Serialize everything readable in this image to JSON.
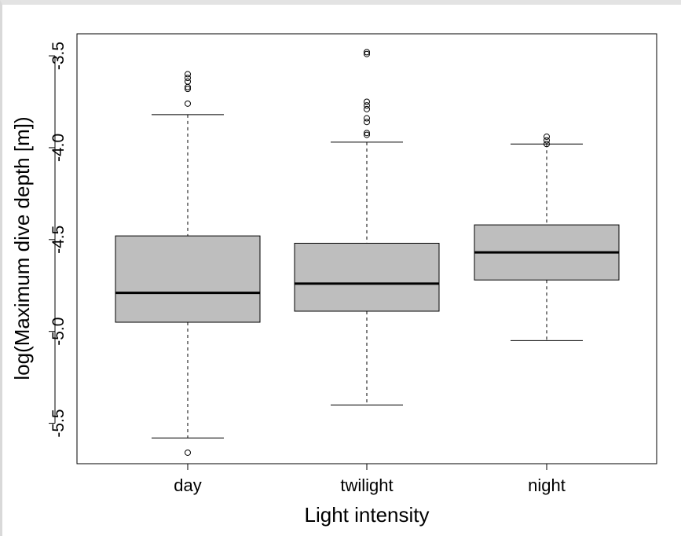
{
  "chart_data": {
    "type": "box",
    "title": "",
    "xlabel": "Light intensity",
    "ylabel": "log(Maximum dive depth [m])",
    "categories": [
      "day",
      "twilight",
      "night"
    ],
    "ylim": [
      -5.72,
      -3.38
    ],
    "yticks": [
      -3.5,
      -4.0,
      -4.5,
      -5.0,
      -5.5
    ],
    "ytick_labels": [
      "-3.5",
      "-4.0",
      "-4.5",
      "-5.0",
      "-5.5"
    ],
    "grid": false,
    "box_color": "#bebebe",
    "boxes": [
      {
        "category": "day",
        "whisker_low": -5.58,
        "q1": -4.95,
        "median": -4.79,
        "q3": -4.48,
        "whisker_high": -3.82,
        "outliers": [
          -5.66,
          -3.6,
          -3.62,
          -3.64,
          -3.67,
          -3.68,
          -3.76
        ]
      },
      {
        "category": "twilight",
        "whisker_low": -5.4,
        "q1": -4.89,
        "median": -4.74,
        "q3": -4.52,
        "whisker_high": -3.97,
        "outliers": [
          -3.48,
          -3.49,
          -3.75,
          -3.77,
          -3.79,
          -3.84,
          -3.86,
          -3.92,
          -3.93
        ]
      },
      {
        "category": "night",
        "whisker_low": -5.05,
        "q1": -4.72,
        "median": -4.57,
        "q3": -4.42,
        "whisker_high": -3.98,
        "outliers": [
          -3.94,
          -3.96,
          -3.98
        ]
      }
    ]
  }
}
